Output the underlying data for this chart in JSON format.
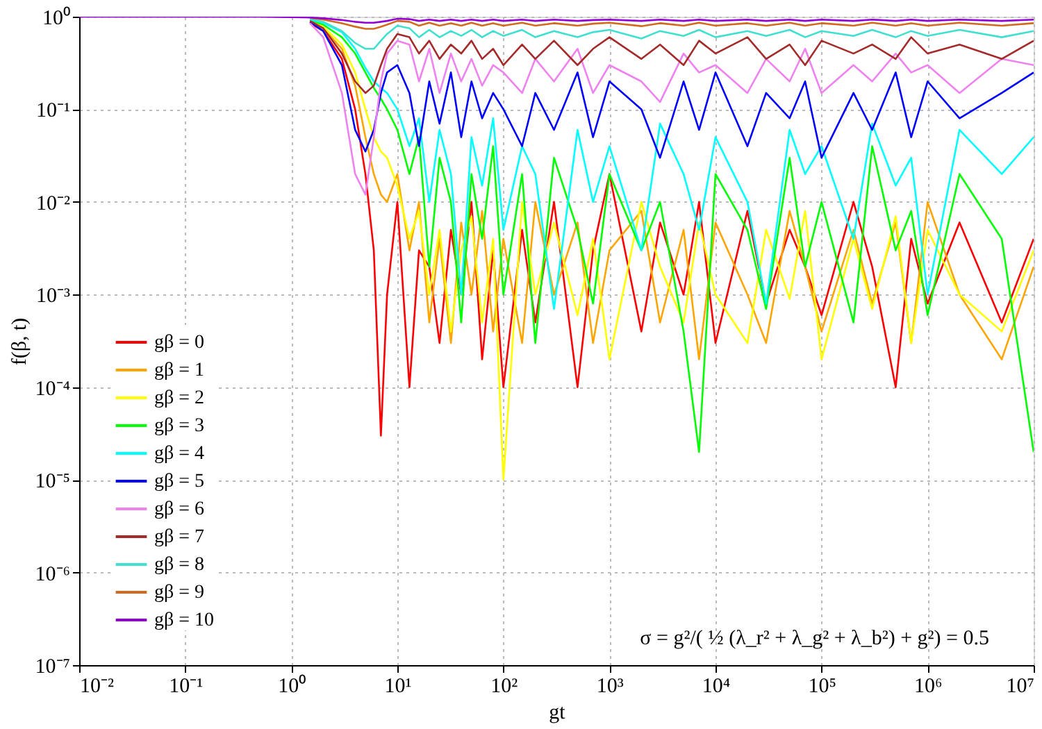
{
  "chart_data": {
    "type": "line",
    "xlabel": "gt",
    "ylabel": "f(β, t)",
    "log": "xy",
    "grid": true,
    "legend": "bottom left",
    "xlim": [
      0.01,
      10000000
    ],
    "ylim": [
      1e-07,
      1
    ],
    "xticks": [
      {
        "value": 0.01,
        "label": "10⁻²"
      },
      {
        "value": 0.1,
        "label": "10⁻¹"
      },
      {
        "value": 1,
        "label": "10⁰"
      },
      {
        "value": 10,
        "label": "10¹"
      },
      {
        "value": 100,
        "label": "10²"
      },
      {
        "value": 1000,
        "label": "10³"
      },
      {
        "value": 10000,
        "label": "10⁴"
      },
      {
        "value": 100000,
        "label": "10⁵"
      },
      {
        "value": 1000000,
        "label": "10⁶"
      },
      {
        "value": 10000000,
        "label": "10⁷"
      }
    ],
    "yticks": [
      {
        "value": 1e-07,
        "label": "10⁻⁷"
      },
      {
        "value": 1e-06,
        "label": "10⁻⁶"
      },
      {
        "value": 1e-05,
        "label": "10⁻⁵"
      },
      {
        "value": 0.0001,
        "label": "10⁻⁴"
      },
      {
        "value": 0.001,
        "label": "10⁻³"
      },
      {
        "value": 0.01,
        "label": "10⁻²"
      },
      {
        "value": 0.1,
        "label": "10⁻¹"
      },
      {
        "value": 1,
        "label": "10⁰"
      }
    ],
    "annotations": [
      "σ = g²/( ½ (λ_r² + λ_g² + λ_b²) + g²) = 0.5"
    ],
    "x": [
      0.01,
      0.1,
      0.5,
      1,
      1.5,
      2,
      3,
      4,
      5,
      6,
      7,
      8,
      10,
      13,
      16,
      20,
      25,
      32,
      40,
      50,
      63,
      80,
      100,
      150,
      200,
      300,
      500,
      700,
      1000,
      2000,
      3000,
      5000,
      7000,
      10000,
      20000,
      30000,
      50000,
      70000,
      100000,
      200000,
      300000,
      500000,
      700000,
      1000000,
      2000000,
      5000000,
      10000000
    ],
    "series": [
      {
        "name": "gβ = 0",
        "color": "#ff0000",
        "values": [
          null,
          null,
          null,
          null,
          0.85,
          0.7,
          0.35,
          0.1,
          0.02,
          0.003,
          3e-05,
          0.001,
          0.01,
          0.0001,
          0.003,
          0.002,
          0.0003,
          0.005,
          0.001,
          0.01,
          0.0002,
          0.003,
          0.0001,
          0.005,
          0.0005,
          0.01,
          0.0001,
          0.003,
          0.02,
          0.0004,
          0.006,
          0.001,
          0.01,
          0.0003,
          0.008,
          0.0008,
          0.005,
          0.002,
          0.0006,
          0.01,
          0.002,
          0.0001,
          0.004,
          0.0008,
          0.006,
          0.0005,
          0.004
        ]
      },
      {
        "name": "gβ = 1",
        "color": "#ffa500",
        "values": [
          null,
          null,
          null,
          null,
          0.88,
          0.75,
          0.45,
          0.18,
          0.05,
          0.02,
          0.012,
          0.01,
          0.02,
          0.003,
          0.01,
          0.0005,
          0.004,
          0.0003,
          0.006,
          0.001,
          0.008,
          0.0004,
          0.004,
          0.0003,
          0.01,
          0.001,
          0.006,
          0.0003,
          0.003,
          0.008,
          0.0005,
          0.005,
          0.0002,
          0.006,
          0.001,
          0.0003,
          0.008,
          0.002,
          0.0004,
          0.005,
          0.0008,
          0.006,
          0.0003,
          0.01,
          0.001,
          0.0002,
          0.002
        ]
      },
      {
        "name": "gβ = 2",
        "color": "#ffff00",
        "values": [
          null,
          null,
          null,
          null,
          0.9,
          0.78,
          0.5,
          0.25,
          0.1,
          0.05,
          0.035,
          0.03,
          0.015,
          0.004,
          0.008,
          0.001,
          0.005,
          0.0004,
          0.003,
          0.007,
          0.0005,
          0.004,
          1e-05,
          0.01,
          0.001,
          0.006,
          0.0006,
          0.004,
          0.0002,
          0.01,
          0.002,
          0.0005,
          0.006,
          0.001,
          0.0003,
          0.005,
          0.0009,
          0.008,
          0.0002,
          0.004,
          0.0007,
          0.007,
          0.0003,
          0.005,
          0.001,
          0.0004,
          0.003
        ]
      },
      {
        "name": "gβ = 3",
        "color": "#00ff00",
        "values": [
          null,
          null,
          null,
          null,
          0.92,
          0.82,
          0.6,
          0.4,
          0.25,
          0.17,
          0.13,
          0.1,
          0.06,
          0.02,
          0.05,
          0.002,
          0.03,
          0.01,
          0.0005,
          0.02,
          0.004,
          0.04,
          0.001,
          0.02,
          0.0003,
          0.03,
          0.005,
          0.0008,
          0.02,
          0.003,
          0.01,
          0.0004,
          2e-05,
          0.02,
          0.005,
          0.0007,
          0.03,
          0.002,
          0.01,
          0.0005,
          0.04,
          0.003,
          0.008,
          0.0006,
          0.02,
          0.004,
          2e-05
        ]
      },
      {
        "name": "gβ = 4",
        "color": "#00ffff",
        "values": [
          null,
          null,
          null,
          null,
          0.93,
          0.86,
          0.68,
          0.45,
          0.28,
          0.2,
          0.17,
          0.15,
          0.1,
          0.04,
          0.08,
          0.01,
          0.06,
          0.02,
          0.001,
          0.05,
          0.015,
          0.08,
          0.005,
          0.04,
          0.02,
          0.0007,
          0.06,
          0.01,
          0.04,
          0.003,
          0.07,
          0.02,
          0.005,
          0.05,
          0.01,
          0.0008,
          0.06,
          0.02,
          0.04,
          0.004,
          0.07,
          0.015,
          0.03,
          0.001,
          0.06,
          0.02,
          0.05
        ]
      },
      {
        "name": "gβ = 5",
        "color": "#0000ff",
        "values": [
          null,
          null,
          null,
          null,
          0.88,
          0.7,
          0.3,
          0.06,
          0.035,
          0.06,
          0.15,
          0.25,
          0.3,
          0.15,
          0.04,
          0.2,
          0.07,
          0.25,
          0.05,
          0.2,
          0.08,
          0.15,
          0.1,
          0.04,
          0.15,
          0.06,
          0.25,
          0.05,
          0.2,
          0.1,
          0.03,
          0.2,
          0.06,
          0.25,
          0.04,
          0.15,
          0.08,
          0.2,
          0.03,
          0.15,
          0.06,
          0.25,
          0.05,
          0.2,
          0.08,
          0.15,
          0.25
        ]
      },
      {
        "name": "gβ = 6",
        "color": "#ee82ee",
        "values": [
          null,
          null,
          null,
          null,
          0.85,
          0.6,
          0.15,
          0.02,
          0.012,
          0.05,
          0.2,
          0.4,
          0.55,
          0.5,
          0.2,
          0.45,
          0.15,
          0.4,
          0.2,
          0.35,
          0.18,
          0.3,
          0.25,
          0.15,
          0.35,
          0.2,
          0.45,
          0.15,
          0.3,
          0.2,
          0.12,
          0.4,
          0.25,
          0.3,
          0.15,
          0.35,
          0.2,
          0.45,
          0.15,
          0.3,
          0.2,
          0.4,
          0.25,
          0.3,
          0.15,
          0.35,
          0.3
        ]
      },
      {
        "name": "gβ = 7",
        "color": "#a52a2a",
        "values": [
          null,
          null,
          null,
          null,
          0.9,
          0.75,
          0.4,
          0.2,
          0.15,
          0.18,
          0.3,
          0.45,
          0.65,
          0.6,
          0.4,
          0.55,
          0.35,
          0.5,
          0.4,
          0.55,
          0.35,
          0.45,
          0.3,
          0.5,
          0.35,
          0.55,
          0.3,
          0.45,
          0.6,
          0.35,
          0.5,
          0.3,
          0.55,
          0.4,
          0.6,
          0.35,
          0.5,
          0.3,
          0.55,
          0.4,
          0.5,
          0.35,
          0.6,
          0.4,
          0.5,
          0.35,
          0.55
        ]
      },
      {
        "name": "gβ = 8",
        "color": "#40e0d0",
        "values": [
          null,
          null,
          null,
          null,
          0.95,
          0.88,
          0.7,
          0.52,
          0.45,
          0.45,
          0.55,
          0.65,
          0.8,
          0.75,
          0.6,
          0.72,
          0.6,
          0.7,
          0.62,
          0.72,
          0.6,
          0.7,
          0.62,
          0.72,
          0.6,
          0.7,
          0.6,
          0.68,
          0.72,
          0.58,
          0.7,
          0.62,
          0.72,
          0.6,
          0.7,
          0.62,
          0.72,
          0.6,
          0.7,
          0.62,
          0.72,
          0.6,
          0.7,
          0.62,
          0.72,
          0.6,
          0.7
        ]
      },
      {
        "name": "gβ = 9",
        "color": "#d2691e",
        "values": [
          null,
          null,
          null,
          null,
          0.97,
          0.93,
          0.85,
          0.78,
          0.74,
          0.74,
          0.78,
          0.82,
          0.9,
          0.88,
          0.8,
          0.86,
          0.8,
          0.85,
          0.8,
          0.86,
          0.8,
          0.85,
          0.8,
          0.86,
          0.8,
          0.85,
          0.8,
          0.84,
          0.86,
          0.79,
          0.85,
          0.8,
          0.86,
          0.8,
          0.85,
          0.8,
          0.86,
          0.8,
          0.85,
          0.8,
          0.86,
          0.8,
          0.85,
          0.8,
          0.86,
          0.8,
          0.85
        ]
      },
      {
        "name": "gβ = 10",
        "color": "#9400d3",
        "values": [
          1,
          1,
          1,
          0.99,
          0.98,
          0.96,
          0.92,
          0.88,
          0.86,
          0.86,
          0.88,
          0.9,
          0.95,
          0.94,
          0.9,
          0.93,
          0.9,
          0.93,
          0.9,
          0.93,
          0.9,
          0.93,
          0.9,
          0.93,
          0.9,
          0.93,
          0.9,
          0.92,
          0.93,
          0.9,
          0.93,
          0.9,
          0.93,
          0.9,
          0.93,
          0.9,
          0.93,
          0.9,
          0.93,
          0.9,
          0.93,
          0.9,
          0.93,
          0.9,
          0.93,
          0.9,
          0.93
        ]
      }
    ]
  }
}
